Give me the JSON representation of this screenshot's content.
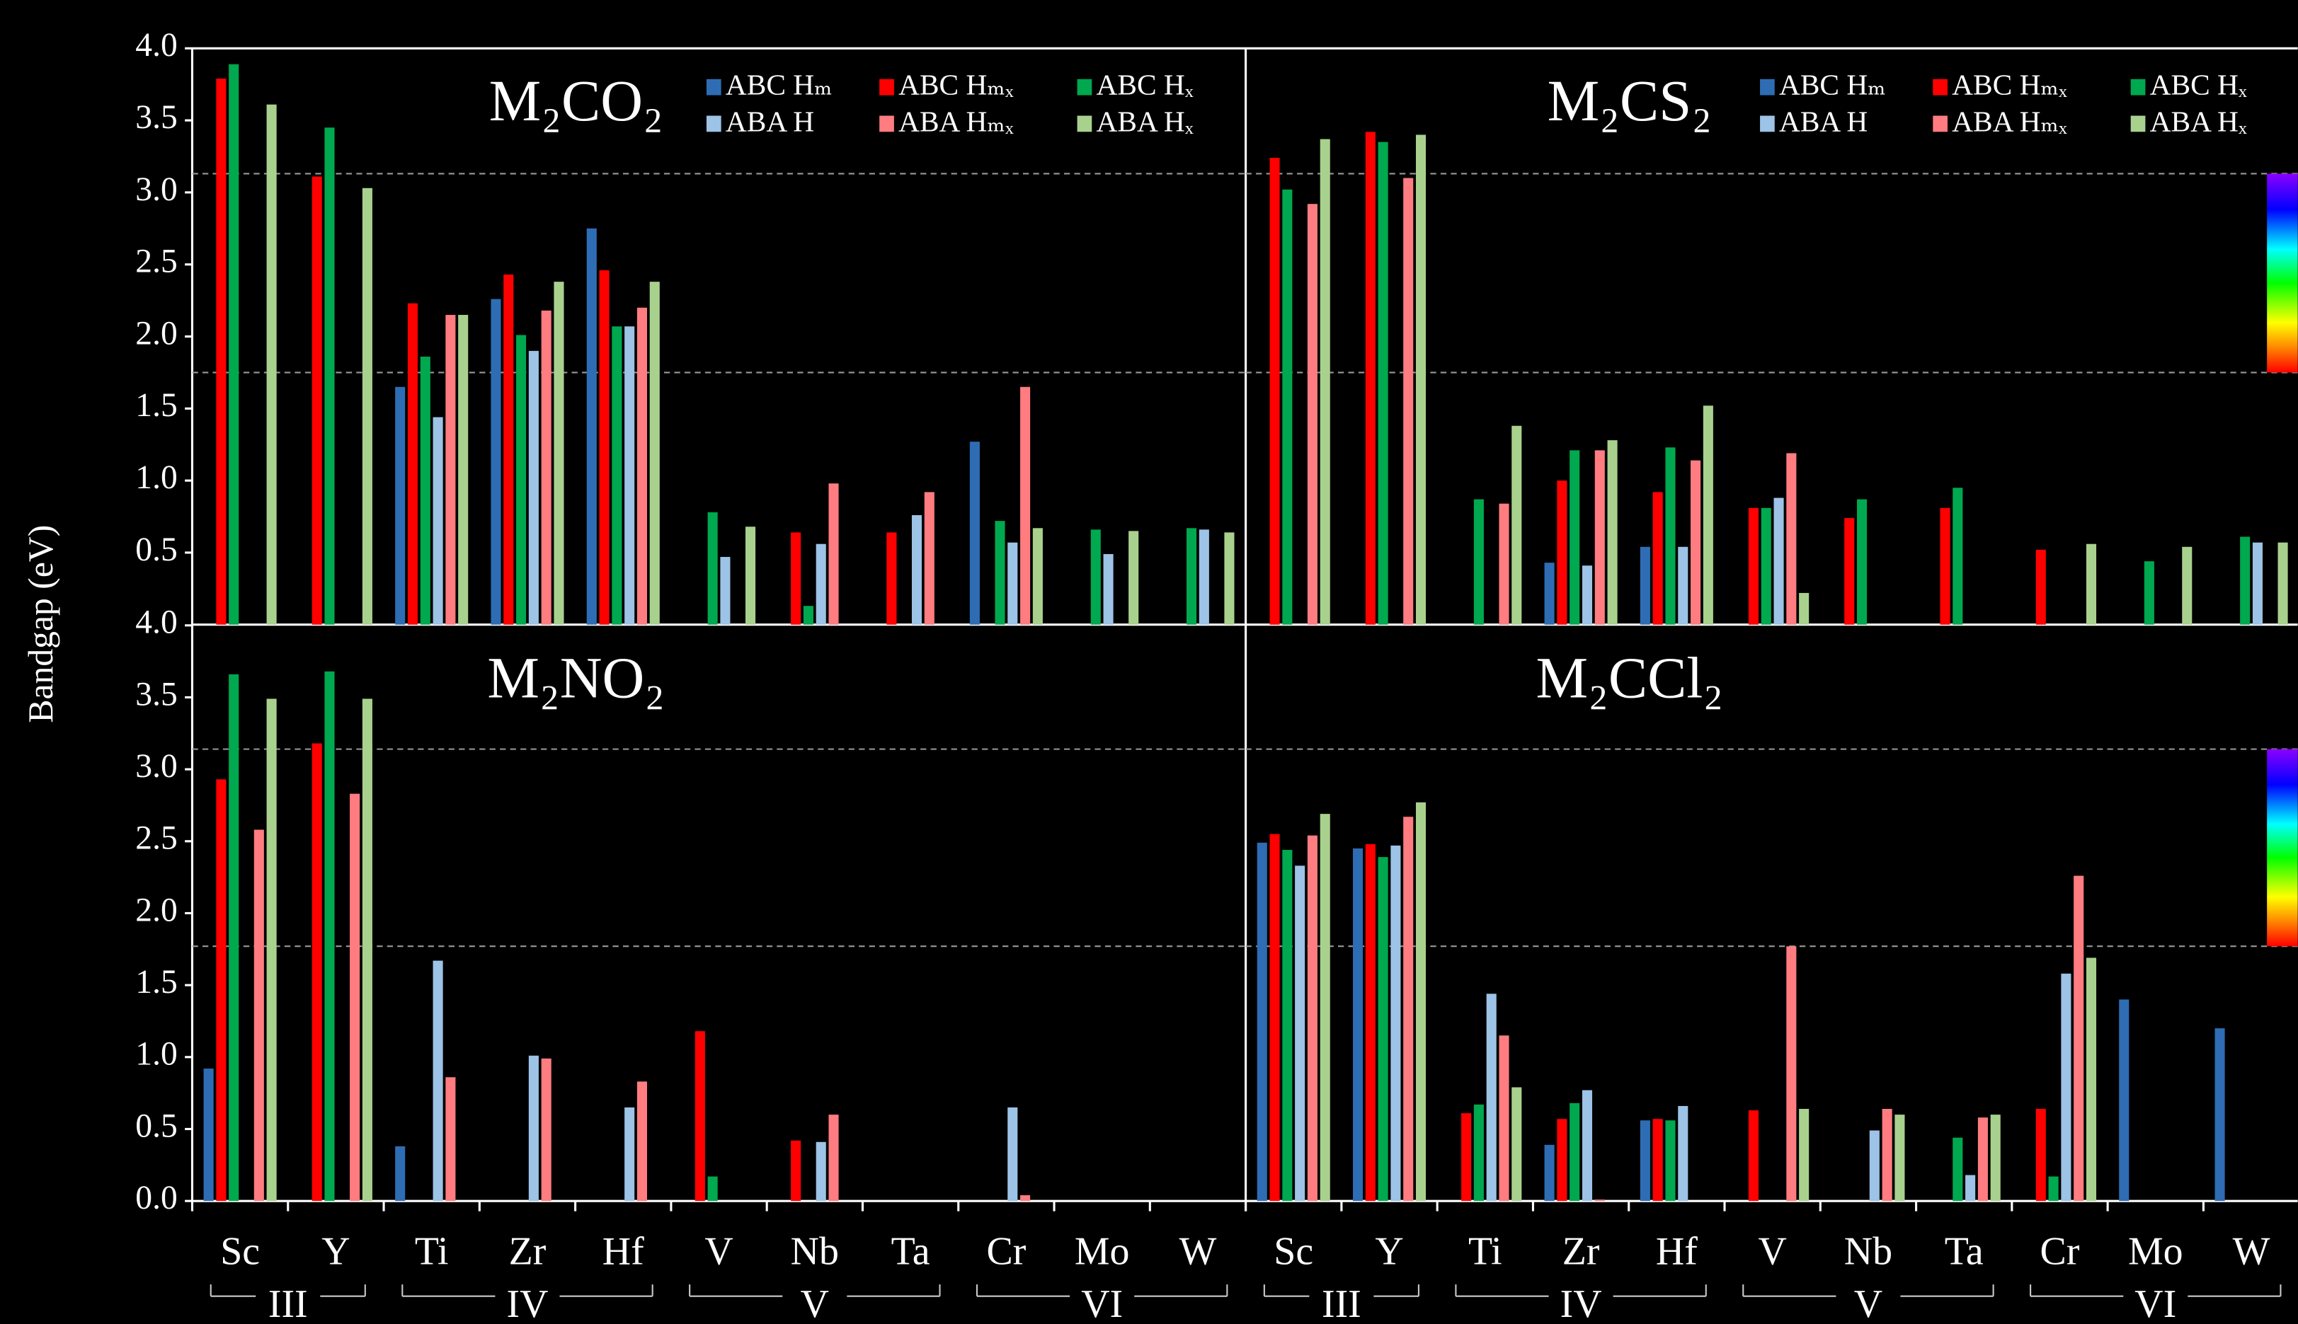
{
  "ylabel": "Bandgap (eV)",
  "chart_data": [
    {
      "type": "bar",
      "title": "M₂CO₂",
      "legend": "upper right",
      "ylim": [
        0,
        4
      ],
      "yticks": [
        0.5,
        {
          "value": 1,
          "label": "1.0"
        },
        1.5,
        {
          "value": 2,
          "label": "2.0"
        },
        2.5,
        {
          "value": 3,
          "label": "3.0"
        },
        3.5,
        {
          "value": 4,
          "label": "4.0"
        }
      ],
      "reference_lines": [
        1.75,
        3.13
      ],
      "series": [
        {
          "name": "ABC Hₘ",
          "color": "#2e6db4",
          "values": [
            null,
            null,
            1.65,
            2.26,
            2.75,
            null,
            null,
            null,
            1.27,
            null,
            null
          ]
        },
        {
          "name": "ABC Hₘₓ",
          "color": "#ff0000",
          "values": [
            3.79,
            3.11,
            2.23,
            2.43,
            2.46,
            null,
            0.64,
            0.64,
            null,
            null,
            null
          ]
        },
        {
          "name": "ABC Hₓ",
          "color": "#00a84f",
          "values": [
            3.89,
            3.45,
            1.86,
            2.01,
            2.07,
            0.78,
            0.13,
            null,
            0.72,
            0.66,
            0.67
          ]
        },
        {
          "name": "ABA H",
          "color": "#9dc3e6",
          "values": [
            null,
            null,
            1.44,
            1.9,
            2.07,
            0.47,
            0.56,
            0.76,
            0.57,
            0.49,
            0.66
          ]
        },
        {
          "name": "ABA Hₘₓ",
          "color": "#ff7c80",
          "values": [
            null,
            null,
            2.15,
            2.18,
            2.2,
            null,
            0.98,
            0.92,
            1.65,
            null,
            null
          ]
        },
        {
          "name": "ABA Hₓ",
          "color": "#a9d18e",
          "values": [
            3.61,
            3.03,
            2.15,
            2.38,
            2.38,
            0.68,
            null,
            null,
            0.67,
            0.65,
            0.64
          ]
        }
      ]
    },
    {
      "type": "bar",
      "title": "M₂CS₂",
      "legend": "upper right",
      "ylim": [
        0,
        4
      ],
      "reference_lines": [
        1.75,
        3.13
      ],
      "series": [
        {
          "name": "ABC Hₘ",
          "color": "#2e6db4",
          "values": [
            null,
            null,
            null,
            0.43,
            0.54,
            null,
            null,
            null,
            null,
            null,
            null
          ]
        },
        {
          "name": "ABC Hₘₓ",
          "color": "#ff0000",
          "values": [
            3.24,
            3.42,
            null,
            1.0,
            0.92,
            0.81,
            0.74,
            0.81,
            0.52,
            null,
            null
          ]
        },
        {
          "name": "ABC Hₓ",
          "color": "#00a84f",
          "values": [
            3.02,
            3.35,
            0.87,
            1.21,
            1.23,
            0.81,
            0.87,
            0.95,
            null,
            0.44,
            0.61
          ]
        },
        {
          "name": "ABA H",
          "color": "#9dc3e6",
          "values": [
            null,
            null,
            null,
            0.41,
            0.54,
            0.88,
            null,
            null,
            null,
            null,
            0.57
          ]
        },
        {
          "name": "ABA Hₘₓ",
          "color": "#ff7c80",
          "values": [
            2.92,
            3.1,
            0.84,
            1.21,
            1.14,
            1.19,
            null,
            null,
            null,
            null,
            null
          ]
        },
        {
          "name": "ABA Hₓ",
          "color": "#a9d18e",
          "values": [
            3.37,
            3.4,
            1.38,
            1.28,
            1.52,
            0.22,
            null,
            null,
            0.56,
            0.54,
            0.57
          ]
        }
      ]
    },
    {
      "type": "bar",
      "title": "M₂NO₂",
      "ylim": [
        0,
        4
      ],
      "yticks": [
        {
          "value": 0,
          "label": "0.0"
        },
        0.5,
        {
          "value": 1,
          "label": "1.0"
        },
        1.5,
        {
          "value": 2,
          "label": "2.0"
        },
        2.5,
        {
          "value": 3,
          "label": "3.0"
        },
        3.5,
        {
          "value": 4,
          "label": "4.0"
        }
      ],
      "reference_lines": [
        1.77,
        3.14
      ],
      "categories": [
        "Sc",
        "Y",
        "Ti",
        "Zr",
        "Hf",
        "V",
        "Nb",
        "Ta",
        "Cr",
        "Mo",
        "W"
      ],
      "groups": [
        {
          "label": "III",
          "categories": [
            "Sc",
            "Y"
          ]
        },
        {
          "label": "IV",
          "categories": [
            "Ti",
            "Zr",
            "Hf"
          ]
        },
        {
          "label": "V",
          "categories": [
            "V",
            "Nb",
            "Ta"
          ]
        },
        {
          "label": "VI",
          "categories": [
            "Cr",
            "Mo",
            "W"
          ]
        }
      ],
      "series": [
        {
          "color": "#2e6db4",
          "values": [
            0.92,
            null,
            0.38,
            null,
            null,
            null,
            null,
            null,
            null,
            null,
            null
          ]
        },
        {
          "color": "#ff0000",
          "values": [
            2.93,
            3.18,
            null,
            null,
            null,
            1.18,
            0.42,
            null,
            null,
            null,
            null
          ]
        },
        {
          "color": "#00a84f",
          "values": [
            3.66,
            3.68,
            null,
            null,
            null,
            0.17,
            null,
            null,
            null,
            null,
            null
          ]
        },
        {
          "color": "#9dc3e6",
          "values": [
            null,
            null,
            1.67,
            1.01,
            0.65,
            null,
            0.41,
            null,
            0.65,
            null,
            null
          ]
        },
        {
          "color": "#ff7c80",
          "values": [
            2.58,
            2.83,
            0.86,
            0.99,
            0.83,
            null,
            0.6,
            null,
            0.04,
            null,
            null
          ]
        },
        {
          "color": "#a9d18e",
          "values": [
            3.49,
            3.49,
            null,
            null,
            null,
            null,
            null,
            null,
            null,
            null,
            null
          ]
        }
      ]
    },
    {
      "type": "bar",
      "title": "M₂CCl₂",
      "ylim": [
        0,
        4
      ],
      "reference_lines": [
        1.77,
        3.14
      ],
      "categories": [
        "Sc",
        "Y",
        "Ti",
        "Zr",
        "Hf",
        "V",
        "Nb",
        "Ta",
        "Cr",
        "Mo",
        "W"
      ],
      "groups": [
        {
          "label": "III",
          "categories": [
            "Sc",
            "Y"
          ]
        },
        {
          "label": "IV",
          "categories": [
            "Ti",
            "Zr",
            "Hf"
          ]
        },
        {
          "label": "V",
          "categories": [
            "V",
            "Nb",
            "Ta"
          ]
        },
        {
          "label": "VI",
          "categories": [
            "Cr",
            "Mo",
            "W"
          ]
        }
      ],
      "series": [
        {
          "color": "#2e6db4",
          "values": [
            2.49,
            2.45,
            null,
            0.39,
            0.56,
            null,
            null,
            null,
            null,
            1.4,
            1.2
          ]
        },
        {
          "color": "#ff0000",
          "values": [
            2.55,
            2.48,
            0.61,
            0.57,
            0.57,
            0.63,
            null,
            null,
            0.64,
            null,
            null
          ]
        },
        {
          "color": "#00a84f",
          "values": [
            2.44,
            2.39,
            0.67,
            0.68,
            0.56,
            null,
            null,
            0.44,
            0.17,
            null,
            null
          ]
        },
        {
          "color": "#9dc3e6",
          "values": [
            2.33,
            2.47,
            1.44,
            0.77,
            0.66,
            null,
            0.49,
            0.18,
            1.58,
            null,
            null
          ]
        },
        {
          "color": "#ff7c80",
          "values": [
            2.54,
            2.67,
            1.15,
            0.01,
            null,
            1.77,
            0.64,
            0.58,
            2.26,
            null,
            null
          ]
        },
        {
          "color": "#a9d18e",
          "values": [
            2.69,
            2.77,
            0.79,
            null,
            null,
            0.64,
            0.6,
            0.6,
            1.69,
            null,
            null
          ]
        }
      ]
    }
  ]
}
